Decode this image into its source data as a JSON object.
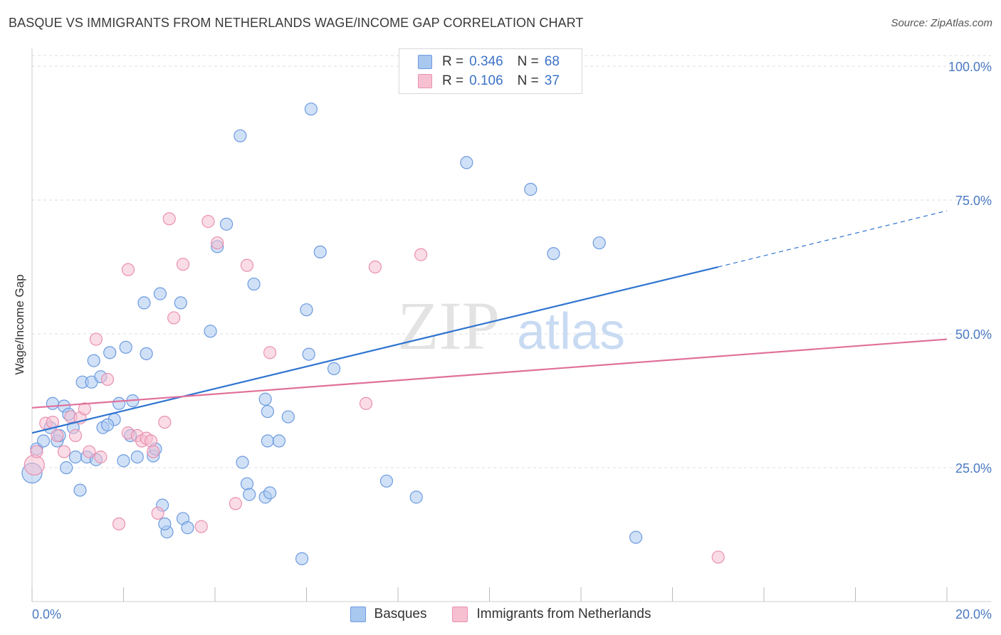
{
  "header": {
    "title": "BASQUE VS IMMIGRANTS FROM NETHERLANDS WAGE/INCOME GAP CORRELATION CHART",
    "source": "Source: ZipAtlas.com"
  },
  "colors": {
    "blue_fill": "#a9c8f0",
    "blue_stroke": "#6d9be0",
    "blue_line": "#2f74d0",
    "pink_fill": "#f6c0d1",
    "pink_stroke": "#e991b0",
    "pink_line": "#e0709a",
    "grid": "#dddddd",
    "tick_text": "#4a7ac4"
  },
  "legend": {
    "rows": [
      {
        "r_label": "R =",
        "r_value": "0.346",
        "n_label": "N =",
        "n_value": "68"
      },
      {
        "r_label": "R =",
        "r_value": "0.106",
        "n_label": "N =",
        "n_value": "37"
      }
    ]
  },
  "watermark": {
    "zip": "ZIP",
    "atlas": "atlas"
  },
  "chart_data": {
    "type": "scatter",
    "title": "BASQUE VS IMMIGRANTS FROM NETHERLANDS WAGE/INCOME GAP CORRELATION CHART",
    "xlabel": "",
    "ylabel": "Wage/Income Gap",
    "xlim": [
      0,
      20
    ],
    "ylim": [
      0,
      102
    ],
    "x_tick_labels": [
      "0.0%",
      "20.0%"
    ],
    "y_ticks": [
      25,
      50,
      75,
      100
    ],
    "y_tick_labels": [
      "25.0%",
      "50.0%",
      "75.0%",
      "100.0%"
    ],
    "grid": true,
    "series": [
      {
        "name": "Basques",
        "color": "#6d9be0",
        "r": 0.346,
        "n": 68,
        "trend": {
          "x0": 0,
          "y0": 31.5,
          "x1": 15,
          "y1": 62.5,
          "dash_to_x": 20,
          "dash_to_y": 73
        },
        "points": [
          [
            0.1,
            28.5
          ],
          [
            0.25,
            30.0
          ],
          [
            0.4,
            32.5
          ],
          [
            0.45,
            37.0
          ],
          [
            0.55,
            30.0
          ],
          [
            0.6,
            31.0
          ],
          [
            0.7,
            36.5
          ],
          [
            0.75,
            25.0
          ],
          [
            0.8,
            35.0
          ],
          [
            0.9,
            32.5
          ],
          [
            0.95,
            27.0
          ],
          [
            1.05,
            20.8
          ],
          [
            1.1,
            41.0
          ],
          [
            1.2,
            27.0
          ],
          [
            1.3,
            41.0
          ],
          [
            1.35,
            45.0
          ],
          [
            1.4,
            26.5
          ],
          [
            1.5,
            42.0
          ],
          [
            1.55,
            32.5
          ],
          [
            1.7,
            46.5
          ],
          [
            1.8,
            34.0
          ],
          [
            1.9,
            37.0
          ],
          [
            2.0,
            26.3
          ],
          [
            2.05,
            47.5
          ],
          [
            2.15,
            31.0
          ],
          [
            2.2,
            37.5
          ],
          [
            2.3,
            27.0
          ],
          [
            2.45,
            55.8
          ],
          [
            2.5,
            46.3
          ],
          [
            2.65,
            27.2
          ],
          [
            2.7,
            28.5
          ],
          [
            2.8,
            57.5
          ],
          [
            2.85,
            18.0
          ],
          [
            2.95,
            13.0
          ],
          [
            3.25,
            55.8
          ],
          [
            3.3,
            15.5
          ],
          [
            3.4,
            13.8
          ],
          [
            3.9,
            50.5
          ],
          [
            4.05,
            66.3
          ],
          [
            4.25,
            70.5
          ],
          [
            4.55,
            87.0
          ],
          [
            4.6,
            26.0
          ],
          [
            4.7,
            22.0
          ],
          [
            4.75,
            20.0
          ],
          [
            4.85,
            59.3
          ],
          [
            5.1,
            37.8
          ],
          [
            5.15,
            35.5
          ],
          [
            5.1,
            19.5
          ],
          [
            5.15,
            30.0
          ],
          [
            5.2,
            20.3
          ],
          [
            5.4,
            30.0
          ],
          [
            5.6,
            34.5
          ],
          [
            5.9,
            8.0
          ],
          [
            6.0,
            54.5
          ],
          [
            6.05,
            46.2
          ],
          [
            6.1,
            92.0
          ],
          [
            6.3,
            65.3
          ],
          [
            6.6,
            43.5
          ],
          [
            7.75,
            22.5
          ],
          [
            8.4,
            19.5
          ],
          [
            9.5,
            82.0
          ],
          [
            10.9,
            77.0
          ],
          [
            11.4,
            65.0
          ],
          [
            12.4,
            67.0
          ],
          [
            13.2,
            12.0
          ],
          [
            0.0,
            24.0
          ],
          [
            1.65,
            33.0
          ],
          [
            2.9,
            14.5
          ]
        ]
      },
      {
        "name": "Immigrants from Netherlands",
        "color": "#e991b0",
        "r": 0.106,
        "n": 37,
        "trend": {
          "x0": 0,
          "y0": 36.2,
          "x1": 20,
          "y1": 49.0
        },
        "points": [
          [
            0.05,
            25.5
          ],
          [
            0.1,
            28.0
          ],
          [
            0.3,
            33.3
          ],
          [
            0.45,
            33.5
          ],
          [
            0.55,
            31.0
          ],
          [
            0.7,
            28.0
          ],
          [
            0.85,
            34.5
          ],
          [
            0.95,
            31.0
          ],
          [
            1.05,
            34.3
          ],
          [
            1.15,
            36.0
          ],
          [
            1.25,
            28.0
          ],
          [
            1.4,
            49.0
          ],
          [
            1.5,
            27.0
          ],
          [
            1.65,
            41.5
          ],
          [
            1.9,
            14.5
          ],
          [
            2.1,
            31.5
          ],
          [
            2.1,
            62.0
          ],
          [
            2.3,
            31.0
          ],
          [
            2.4,
            30.0
          ],
          [
            2.5,
            30.5
          ],
          [
            2.6,
            30.0
          ],
          [
            2.75,
            16.5
          ],
          [
            2.9,
            33.5
          ],
          [
            3.0,
            71.5
          ],
          [
            3.1,
            53.0
          ],
          [
            3.3,
            63.0
          ],
          [
            3.7,
            14.0
          ],
          [
            3.85,
            71.0
          ],
          [
            4.05,
            67.0
          ],
          [
            4.45,
            18.3
          ],
          [
            4.7,
            62.8
          ],
          [
            5.2,
            46.5
          ],
          [
            7.3,
            37.0
          ],
          [
            7.5,
            62.5
          ],
          [
            8.5,
            64.8
          ],
          [
            15.0,
            8.3
          ],
          [
            2.65,
            28.0
          ]
        ]
      }
    ]
  },
  "bottom_legend": {
    "items": [
      {
        "label": "Basques"
      },
      {
        "label": "Immigrants from Netherlands"
      }
    ]
  }
}
